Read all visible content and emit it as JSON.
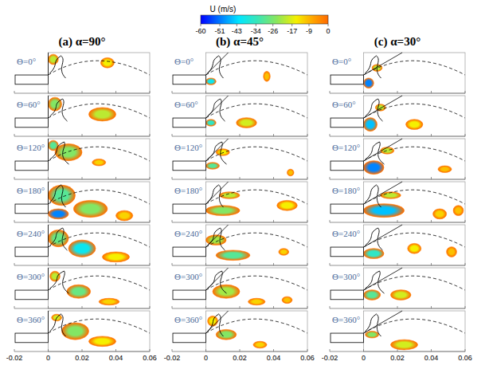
{
  "chart_data": {
    "type": "contour",
    "colorbar": {
      "title": "U (m/s)",
      "range": [
        -60,
        0
      ],
      "ticks": [
        -60,
        -51,
        -43,
        -34,
        -26,
        -17,
        -9,
        0
      ]
    },
    "xlim": [
      -0.02,
      0.06
    ],
    "xticks": [
      -0.02,
      0,
      0.02,
      0.04,
      0.06
    ],
    "ylim": [
      0,
      0.024
    ],
    "tick_labels": "x",
    "rows": [
      "Θ=0°",
      "Θ=60°",
      "Θ=120°",
      "Θ=180°",
      "Θ=240°",
      "Θ=300°",
      "Θ=360°"
    ],
    "columns": [
      {
        "title": "(a) α=90°",
        "angle": 90,
        "panels": [
          [
            {
              "x": 0.003,
              "y": 0.02,
              "rx": 0.003,
              "ry": 0.003,
              "value": -20
            },
            {
              "x": 0.035,
              "y": 0.018,
              "rx": 0.004,
              "ry": 0.003,
              "value": -15
            }
          ],
          [
            {
              "x": 0.004,
              "y": 0.019,
              "rx": 0.004,
              "ry": 0.004,
              "value": -25
            },
            {
              "x": 0.032,
              "y": 0.013,
              "rx": 0.008,
              "ry": 0.004,
              "value": -20
            }
          ],
          [
            {
              "x": 0.003,
              "y": 0.02,
              "rx": 0.003,
              "ry": 0.003,
              "value": -30
            },
            {
              "x": 0.012,
              "y": 0.016,
              "rx": 0.008,
              "ry": 0.005,
              "value": -25
            },
            {
              "x": 0.03,
              "y": 0.01,
              "rx": 0.004,
              "ry": 0.002,
              "value": -12
            }
          ],
          [
            {
              "x": 0.008,
              "y": 0.016,
              "rx": 0.008,
              "ry": 0.006,
              "value": -30
            },
            {
              "x": 0.006,
              "y": 0.005,
              "rx": 0.006,
              "ry": 0.003,
              "value": -50
            },
            {
              "x": 0.025,
              "y": 0.008,
              "rx": 0.01,
              "ry": 0.005,
              "value": -25
            },
            {
              "x": 0.045,
              "y": 0.004,
              "rx": 0.005,
              "ry": 0.003,
              "value": -12
            }
          ],
          [
            {
              "x": 0.006,
              "y": 0.016,
              "rx": 0.006,
              "ry": 0.005,
              "value": -28
            },
            {
              "x": 0.02,
              "y": 0.01,
              "rx": 0.008,
              "ry": 0.005,
              "value": -40
            },
            {
              "x": 0.04,
              "y": 0.005,
              "rx": 0.008,
              "ry": 0.003,
              "value": -15
            }
          ],
          [
            {
              "x": 0.004,
              "y": 0.019,
              "rx": 0.003,
              "ry": 0.003,
              "value": -20
            },
            {
              "x": 0.018,
              "y": 0.01,
              "rx": 0.007,
              "ry": 0.004,
              "value": -28
            },
            {
              "x": 0.036,
              "y": 0.004,
              "rx": 0.006,
              "ry": 0.002,
              "value": -12
            }
          ],
          [
            {
              "x": 0.005,
              "y": 0.02,
              "rx": 0.003,
              "ry": 0.002,
              "value": -18
            },
            {
              "x": 0.016,
              "y": 0.012,
              "rx": 0.008,
              "ry": 0.005,
              "value": -25
            },
            {
              "x": 0.032,
              "y": 0.006,
              "rx": 0.008,
              "ry": 0.003,
              "value": -15
            }
          ]
        ]
      },
      {
        "title": "(b) α=45°",
        "angle": 45,
        "panels": [
          [
            {
              "x": 0.003,
              "y": 0.007,
              "rx": 0.003,
              "ry": 0.002,
              "value": -40
            },
            {
              "x": 0.036,
              "y": 0.01,
              "rx": 0.002,
              "ry": 0.003,
              "value": -10
            }
          ],
          [
            {
              "x": 0.003,
              "y": 0.008,
              "rx": 0.003,
              "ry": 0.002,
              "value": -35
            },
            {
              "x": 0.024,
              "y": 0.008,
              "rx": 0.006,
              "ry": 0.003,
              "value": -18
            }
          ],
          [
            {
              "x": 0.004,
              "y": 0.008,
              "rx": 0.004,
              "ry": 0.002,
              "value": -30
            },
            {
              "x": 0.01,
              "y": 0.016,
              "rx": 0.004,
              "ry": 0.002,
              "value": -15
            },
            {
              "x": 0.05,
              "y": 0.004,
              "rx": 0.002,
              "ry": 0.002,
              "value": -10
            }
          ],
          [
            {
              "x": 0.01,
              "y": 0.007,
              "rx": 0.01,
              "ry": 0.003,
              "value": -25
            },
            {
              "x": 0.014,
              "y": 0.016,
              "rx": 0.006,
              "ry": 0.002,
              "value": -20
            },
            {
              "x": 0.048,
              "y": 0.01,
              "rx": 0.006,
              "ry": 0.003,
              "value": -15
            }
          ],
          [
            {
              "x": 0.006,
              "y": 0.015,
              "rx": 0.006,
              "ry": 0.003,
              "value": -22
            },
            {
              "x": 0.016,
              "y": 0.006,
              "rx": 0.01,
              "ry": 0.003,
              "value": -30
            },
            {
              "x": 0.046,
              "y": 0.008,
              "rx": 0.003,
              "ry": 0.002,
              "value": -12
            }
          ],
          [
            {
              "x": 0.012,
              "y": 0.01,
              "rx": 0.008,
              "ry": 0.004,
              "value": -22
            },
            {
              "x": 0.03,
              "y": 0.004,
              "rx": 0.005,
              "ry": 0.002,
              "value": -12
            },
            {
              "x": 0.048,
              "y": 0.005,
              "rx": 0.003,
              "ry": 0.002,
              "value": -10
            }
          ],
          [
            {
              "x": 0.004,
              "y": 0.018,
              "rx": 0.003,
              "ry": 0.003,
              "value": -15
            },
            {
              "x": 0.012,
              "y": 0.01,
              "rx": 0.006,
              "ry": 0.003,
              "value": -25
            },
            {
              "x": 0.032,
              "y": 0.004,
              "rx": 0.004,
              "ry": 0.002,
              "value": -12
            }
          ]
        ]
      },
      {
        "title": "(c) α=30°",
        "angle": 30,
        "panels": [
          [
            {
              "x": 0.003,
              "y": 0.006,
              "rx": 0.003,
              "ry": 0.003,
              "value": -50
            },
            {
              "x": 0.008,
              "y": 0.015,
              "rx": 0.003,
              "ry": 0.002,
              "value": -20
            }
          ],
          [
            {
              "x": 0.004,
              "y": 0.007,
              "rx": 0.004,
              "ry": 0.004,
              "value": -45
            },
            {
              "x": 0.01,
              "y": 0.017,
              "rx": 0.003,
              "ry": 0.002,
              "value": -20
            },
            {
              "x": 0.03,
              "y": 0.007,
              "rx": 0.005,
              "ry": 0.003,
              "value": -15
            }
          ],
          [
            {
              "x": 0.006,
              "y": 0.007,
              "rx": 0.006,
              "ry": 0.004,
              "value": -50
            },
            {
              "x": 0.014,
              "y": 0.017,
              "rx": 0.004,
              "ry": 0.002,
              "value": -20
            },
            {
              "x": 0.048,
              "y": 0.006,
              "rx": 0.004,
              "ry": 0.002,
              "value": -10
            }
          ],
          [
            {
              "x": 0.012,
              "y": 0.007,
              "rx": 0.012,
              "ry": 0.004,
              "value": -45
            },
            {
              "x": 0.016,
              "y": 0.016,
              "rx": 0.006,
              "ry": 0.002,
              "value": -20
            },
            {
              "x": 0.045,
              "y": 0.005,
              "rx": 0.004,
              "ry": 0.003,
              "value": -12
            },
            {
              "x": 0.056,
              "y": 0.007,
              "rx": 0.003,
              "ry": 0.003,
              "value": -10
            }
          ],
          [
            {
              "x": 0.006,
              "y": 0.007,
              "rx": 0.006,
              "ry": 0.003,
              "value": -35
            },
            {
              "x": 0.03,
              "y": 0.01,
              "rx": 0.004,
              "ry": 0.003,
              "value": -15
            },
            {
              "x": 0.052,
              "y": 0.008,
              "rx": 0.003,
              "ry": 0.003,
              "value": -10
            }
          ],
          [
            {
              "x": 0.005,
              "y": 0.008,
              "rx": 0.005,
              "ry": 0.003,
              "value": -30
            },
            {
              "x": 0.022,
              "y": 0.008,
              "rx": 0.006,
              "ry": 0.003,
              "value": -18
            }
          ],
          [
            {
              "x": 0.005,
              "y": 0.01,
              "rx": 0.004,
              "ry": 0.002,
              "value": -25
            },
            {
              "x": 0.024,
              "y": 0.004,
              "rx": 0.008,
              "ry": 0.003,
              "value": -18
            }
          ]
        ]
      }
    ]
  }
}
